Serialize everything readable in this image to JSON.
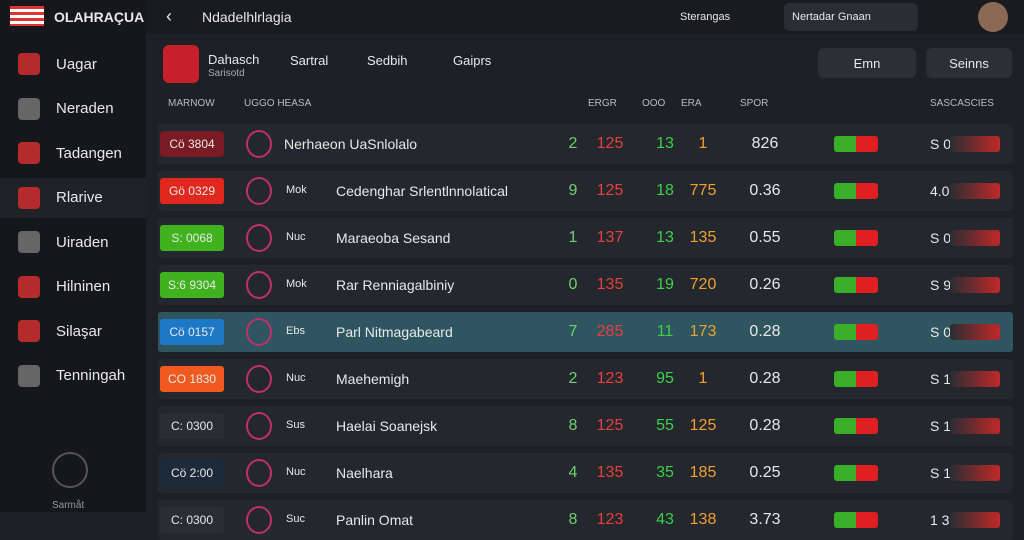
{
  "brand": "OLAHRAÇUA",
  "nav": [
    "Uagar",
    "Neraden",
    "Tadangen",
    "Rlarive",
    "Uiraden",
    "Hilninen",
    "Silaşar",
    "Tenningah"
  ],
  "nav_footer": "Sarmåt",
  "topbar": {
    "title": "Ndadelhlrlagia",
    "link": "Sterangas",
    "search": "Nertadar Gnaan"
  },
  "team": {
    "name": "Dahasch",
    "sub": "Sarisotd"
  },
  "tabs": [
    "Sartral",
    "Sedbih",
    "Gaiprs"
  ],
  "buttons": [
    "Emn",
    "Seinns"
  ],
  "table": {
    "headers": [
      "MARNOW",
      "UGGO HEASA",
      "ERGR",
      "OOO",
      "ERA",
      "SPOR",
      "SASCASCIES"
    ],
    "rows": [
      {
        "code": "Cö 3804",
        "pill": "#7a1a22",
        "tag": "",
        "name": "Nerhaeon UaSnlolalo",
        "c1": "2",
        "c2": "125",
        "c3": "13",
        "c4": "1",
        "c5": "826",
        "last": "S 0"
      },
      {
        "code": "Gö 0329",
        "pill": "#e0281e",
        "tag": "Mok",
        "name": "Cedenghar Srlentlnnolatical",
        "c1": "9",
        "c2": "125",
        "c3": "18",
        "c4": "775",
        "c5": "0.36",
        "last": "4.0"
      },
      {
        "code": "S: 0068",
        "pill": "#3fb21d",
        "tag": "Nuc",
        "name": "Maraeoba Sesand",
        "c1": "1",
        "c2": "137",
        "c3": "13",
        "c4": "135",
        "c5": "0.55",
        "last": "S 0"
      },
      {
        "code": "S:6 9304",
        "pill": "#3fb21d",
        "tag": "Mok",
        "name": "Rar Renniagalbiniy",
        "c1": "0",
        "c2": "135",
        "c3": "19",
        "c4": "720",
        "c5": "0.26",
        "last": "S 9"
      },
      {
        "code": "Cö 0157",
        "pill": "#1e78c8",
        "tag": "Ebs",
        "name": "Parl Nitmagabeard",
        "c1": "7",
        "c2": "285",
        "c3": "11",
        "c4": "173",
        "c5": "0.28",
        "last": "S 0"
      },
      {
        "code": "CO 1830",
        "pill": "#f05a1e",
        "tag": "Nuc",
        "name": "Maehemigh",
        "c1": "2",
        "c2": "123",
        "c3": "95",
        "c4": "1",
        "c5": "0.28",
        "last": "S 1"
      },
      {
        "code": "C: 0300",
        "pill": "#2a2d33",
        "tag": "Sus",
        "name": "Haelai Soanejsk",
        "c1": "8",
        "c2": "125",
        "c3": "55",
        "c4": "125",
        "c5": "0.28",
        "last": "S 1"
      },
      {
        "code": "Cö 2:00",
        "pill": "#1d2a3a",
        "tag": "Nuc",
        "name": "Naelhara",
        "c1": "4",
        "c2": "135",
        "c3": "35",
        "c4": "185",
        "c5": "0.25",
        "last": "S 1"
      },
      {
        "code": "C: 0300",
        "pill": "#2a2d33",
        "tag": "Suc",
        "name": "Panlin Omat",
        "c1": "8",
        "c2": "123",
        "c3": "43",
        "c4": "138",
        "c5": "3.73",
        "last": "1 3"
      }
    ]
  }
}
